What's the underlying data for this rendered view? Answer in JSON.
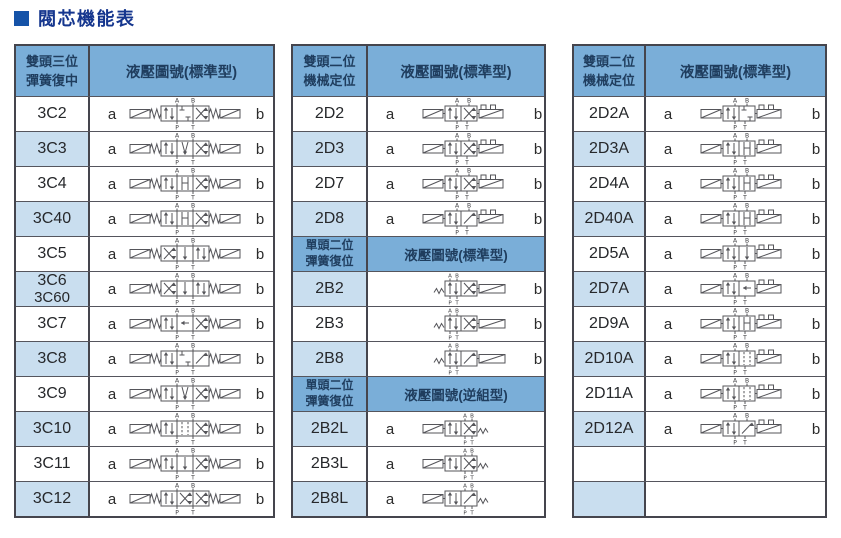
{
  "title": {
    "text": "閥芯機能表"
  },
  "colors": {
    "accent_square": "#1553A8",
    "title_text": "#15368E",
    "header_bg": "#7AAED8",
    "header_text": "#1F3D5E",
    "shaded_cell": "#C9DEEF",
    "table_border": "#45454D",
    "symbol_line": "#55555A"
  },
  "tables": [
    {
      "id": "left",
      "sections": [
        {
          "header": {
            "line1": "雙頭三位",
            "line2": "彈簧復中",
            "title": "液壓圖號(標準型)"
          },
          "rows": [
            {
              "code": "3C2",
              "a": "a",
              "b": "b",
              "shade": false,
              "sym": {
                "p": 3,
                "l": "ss",
                "r": "ss",
                "ports": "j",
                "boxes": [
                  "pa",
                  "c",
                  "x"
                ]
              }
            },
            {
              "code": "3C3",
              "a": "a",
              "b": "b",
              "shade": true,
              "sym": {
                "p": 3,
                "l": "ss",
                "r": "ss",
                "ports": "j",
                "boxes": [
                  "pa",
                  "abt",
                  "x"
                ]
              }
            },
            {
              "code": "3C4",
              "a": "a",
              "b": "b",
              "shade": false,
              "sym": {
                "p": 3,
                "l": "ss",
                "r": "ss",
                "ports": "j",
                "boxes": [
                  "pa",
                  "h",
                  "x"
                ]
              }
            },
            {
              "code": "3C40",
              "a": "a",
              "b": "b",
              "shade": true,
              "sym": {
                "p": 3,
                "l": "ss",
                "r": "ss",
                "ports": "j",
                "boxes": [
                  "pa",
                  "h",
                  "x"
                ]
              }
            },
            {
              "code": "3C5",
              "a": "a",
              "b": "b",
              "shade": false,
              "sym": {
                "p": 3,
                "l": "ss",
                "r": "ss",
                "ports": "j",
                "boxes": [
                  "x",
                  "pt",
                  "pa"
                ]
              }
            },
            {
              "code": "3C6",
              "code2": "3C60",
              "a": "a",
              "b": "b",
              "shade": true,
              "sym": {
                "p": 3,
                "l": "ss",
                "r": "ss",
                "ports": "j",
                "boxes": [
                  "x",
                  "pt",
                  "pa"
                ]
              }
            },
            {
              "code": "3C7",
              "a": "a",
              "b": "b",
              "shade": false,
              "sym": {
                "p": 3,
                "l": "ss",
                "r": "ss",
                "ports": "j",
                "boxes": [
                  "pa",
                  "ha",
                  "x"
                ]
              }
            },
            {
              "code": "3C8",
              "a": "a",
              "b": "b",
              "shade": true,
              "sym": {
                "p": 3,
                "l": "ss",
                "r": "ss",
                "ports": "j",
                "boxes": [
                  "pa",
                  "c",
                  "diag"
                ]
              }
            },
            {
              "code": "3C9",
              "a": "a",
              "b": "b",
              "shade": false,
              "sym": {
                "p": 3,
                "l": "ss",
                "r": "ss",
                "ports": "j",
                "boxes": [
                  "pa",
                  "abt",
                  "x"
                ]
              }
            },
            {
              "code": "3C10",
              "a": "a",
              "b": "b",
              "shade": true,
              "sym": {
                "p": 3,
                "l": "ss",
                "r": "ss",
                "ports": "j",
                "boxes": [
                  "pa",
                  "d",
                  "x"
                ]
              }
            },
            {
              "code": "3C11",
              "a": "a",
              "b": "b",
              "shade": false,
              "sym": {
                "p": 3,
                "l": "ss",
                "r": "ss",
                "ports": "j",
                "boxes": [
                  "pa",
                  "pt",
                  "x"
                ]
              }
            },
            {
              "code": "3C12",
              "a": "a",
              "b": "b",
              "shade": true,
              "sym": {
                "p": 3,
                "l": "ss",
                "r": "ss",
                "ports": "j",
                "boxes": [
                  "pa",
                  "x",
                  "x"
                ]
              }
            }
          ]
        }
      ]
    },
    {
      "id": "middle",
      "sections": [
        {
          "header": {
            "line1": "雙頭二位",
            "line2": "機械定位",
            "title": "液壓圖號(標準型)"
          },
          "rows": [
            {
              "code": "2D2",
              "a": "a",
              "b": "b",
              "shade": false,
              "sym": {
                "p": 2,
                "l": "s",
                "r": "ds",
                "ports": "j2",
                "boxes": [
                  "pa",
                  "x"
                ]
              }
            },
            {
              "code": "2D3",
              "a": "a",
              "b": "b",
              "shade": true,
              "sym": {
                "p": 2,
                "l": "s",
                "r": "ds",
                "ports": "j2",
                "boxes": [
                  "pa",
                  "x"
                ]
              }
            },
            {
              "code": "2D7",
              "a": "a",
              "b": "b",
              "shade": false,
              "sym": {
                "p": 2,
                "l": "s",
                "r": "ds",
                "ports": "j2",
                "boxes": [
                  "pa",
                  "x"
                ]
              }
            },
            {
              "code": "2D8",
              "a": "a",
              "b": "b",
              "shade": true,
              "sym": {
                "p": 2,
                "l": "s",
                "r": "ds",
                "ports": "j2",
                "boxes": [
                  "pa",
                  "diag"
                ]
              }
            }
          ]
        },
        {
          "header": {
            "line1": "單頭二位",
            "line2": "彈簧復位",
            "title": "液壓圖號(標準型)"
          },
          "rows": [
            {
              "code": "2B2",
              "a": "",
              "b": "b",
              "shade": true,
              "sym": {
                "p": 2,
                "l": "w",
                "r": "s",
                "ports": "l",
                "boxes": [
                  "pa",
                  "x"
                ]
              }
            },
            {
              "code": "2B3",
              "a": "",
              "b": "b",
              "shade": false,
              "sym": {
                "p": 2,
                "l": "w",
                "r": "s",
                "ports": "l",
                "boxes": [
                  "pa",
                  "x"
                ]
              }
            },
            {
              "code": "2B8",
              "a": "",
              "b": "b",
              "shade": true,
              "sym": {
                "p": 2,
                "l": "w",
                "r": "s",
                "ports": "l",
                "boxes": [
                  "pa",
                  "diag"
                ]
              }
            }
          ]
        },
        {
          "header": {
            "line1": "單頭二位",
            "line2": "彈簧復位",
            "title": "液壓圖號(逆組型)"
          },
          "rows": [
            {
              "code": "2B2L",
              "a": "a",
              "b": "",
              "shade": true,
              "sym": {
                "p": 2,
                "l": "s",
                "r": "w",
                "ports": "r",
                "boxes": [
                  "pa",
                  "x"
                ]
              }
            },
            {
              "code": "2B3L",
              "a": "a",
              "b": "",
              "shade": false,
              "sym": {
                "p": 2,
                "l": "s",
                "r": "w",
                "ports": "r",
                "boxes": [
                  "pa",
                  "x"
                ]
              }
            },
            {
              "code": "2B8L",
              "a": "a",
              "b": "",
              "shade": true,
              "sym": {
                "p": 2,
                "l": "s",
                "r": "w",
                "ports": "r",
                "boxes": [
                  "pa",
                  "diag"
                ]
              }
            }
          ]
        }
      ]
    },
    {
      "id": "right",
      "sections": [
        {
          "header": {
            "line1": "雙頭二位",
            "line2": "機械定位",
            "title": "液壓圖號(標準型)"
          },
          "rows": [
            {
              "code": "2D2A",
              "a": "a",
              "b": "b",
              "shade": false,
              "sym": {
                "p": 2,
                "l": "s",
                "r": "ds",
                "ports": "j2",
                "boxes": [
                  "pa",
                  "c"
                ]
              }
            },
            {
              "code": "2D3A",
              "a": "a",
              "b": "b",
              "shade": true,
              "sym": {
                "p": 2,
                "l": "s",
                "r": "ds",
                "ports": "j2",
                "boxes": [
                  "pa",
                  "h"
                ]
              }
            },
            {
              "code": "2D4A",
              "a": "a",
              "b": "b",
              "shade": false,
              "sym": {
                "p": 2,
                "l": "s",
                "r": "ds",
                "ports": "j2",
                "boxes": [
                  "pa",
                  "h"
                ]
              }
            },
            {
              "code": "2D40A",
              "a": "a",
              "b": "b",
              "shade": true,
              "sym": {
                "p": 2,
                "l": "s",
                "r": "ds",
                "ports": "j2",
                "boxes": [
                  "pa",
                  "h"
                ]
              }
            },
            {
              "code": "2D5A",
              "a": "a",
              "b": "b",
              "shade": false,
              "sym": {
                "p": 2,
                "l": "s",
                "r": "ds",
                "ports": "j2",
                "boxes": [
                  "pa",
                  "pt"
                ]
              }
            },
            {
              "code": "2D7A",
              "a": "a",
              "b": "b",
              "shade": true,
              "sym": {
                "p": 2,
                "l": "s",
                "r": "ds",
                "ports": "j2",
                "boxes": [
                  "pa",
                  "ha"
                ]
              }
            },
            {
              "code": "2D9A",
              "a": "a",
              "b": "b",
              "shade": false,
              "sym": {
                "p": 2,
                "l": "s",
                "r": "ds",
                "ports": "j2",
                "boxes": [
                  "pa",
                  "h"
                ]
              }
            },
            {
              "code": "2D10A",
              "a": "a",
              "b": "b",
              "shade": true,
              "sym": {
                "p": 2,
                "l": "s",
                "r": "ds",
                "ports": "j2",
                "boxes": [
                  "pa",
                  "d"
                ]
              }
            },
            {
              "code": "2D11A",
              "a": "a",
              "b": "b",
              "shade": false,
              "sym": {
                "p": 2,
                "l": "s",
                "r": "ds",
                "ports": "j2",
                "boxes": [
                  "pa",
                  "d"
                ]
              }
            },
            {
              "code": "2D12A",
              "a": "a",
              "b": "b",
              "shade": true,
              "sym": {
                "p": 2,
                "l": "s",
                "r": "ds",
                "ports": "j2",
                "boxes": [
                  "pa",
                  "diag"
                ]
              }
            },
            {
              "code": "",
              "a": "",
              "b": "",
              "shade": false,
              "sym": null
            },
            {
              "code": "",
              "a": "",
              "b": "",
              "shade": true,
              "sym": null
            }
          ]
        }
      ]
    }
  ]
}
